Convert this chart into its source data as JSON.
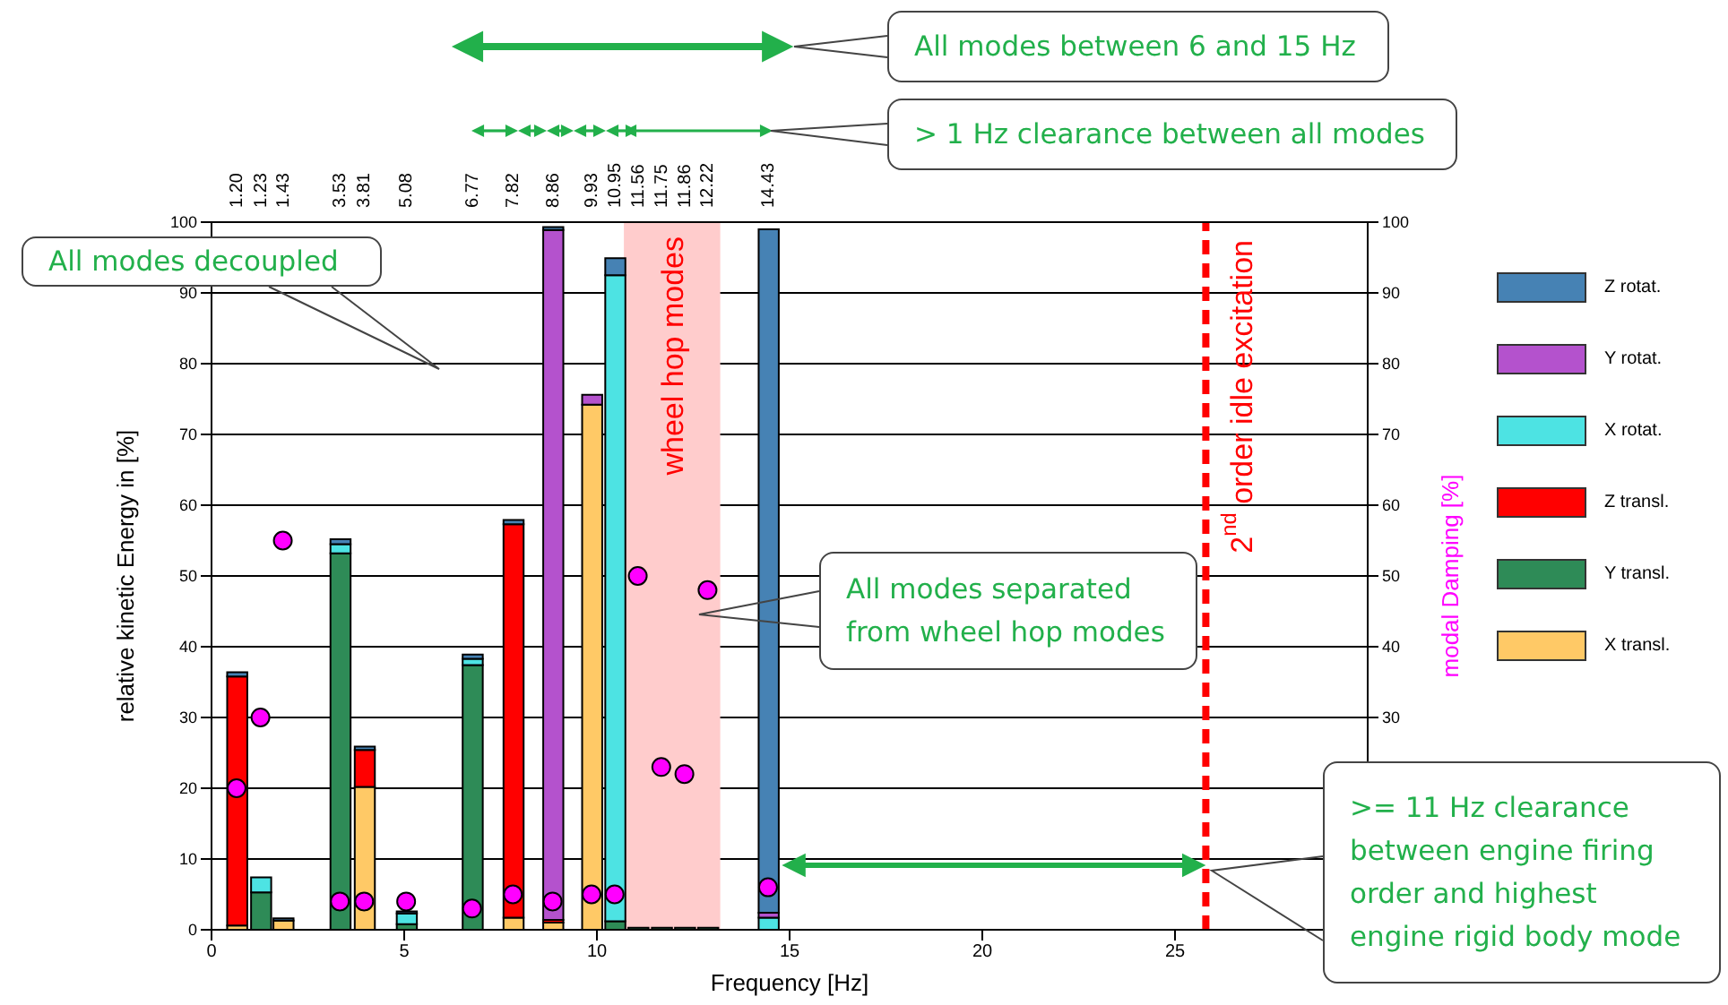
{
  "chart_data": {
    "type": "bar",
    "stacked": true,
    "xlabel": "Frequency [Hz]",
    "ylabel": "relative kinetic Energy in [%]",
    "y2label": "modal Damping [%]",
    "x": [
      0.65,
      1.27,
      1.85,
      3.33,
      3.96,
      5.05,
      6.76,
      7.82,
      8.85,
      9.86,
      10.46,
      11.06,
      11.67,
      12.27,
      12.87,
      14.44
    ],
    "series": [
      {
        "name": "X transl.",
        "color": "#ffc966",
        "values": [
          0.6,
          null,
          1.3,
          null,
          20.2,
          null,
          null,
          1.7,
          1.0,
          74.2,
          null,
          null,
          null,
          null,
          null,
          null
        ]
      },
      {
        "name": "Y transl.",
        "color": "#2e8b57",
        "values": [
          null,
          5.3,
          null,
          53.2,
          null,
          0.8,
          37.4,
          null,
          null,
          null,
          1.2,
          0.3,
          0.3,
          0.3,
          0.3,
          null
        ]
      },
      {
        "name": "Z transl.",
        "color": "#ff0000",
        "values": [
          35.2,
          null,
          null,
          null,
          5.2,
          null,
          null,
          55.6,
          0.4,
          null,
          null,
          null,
          null,
          null,
          null,
          null
        ]
      },
      {
        "name": "X rotat.",
        "color": "#4de3e3",
        "values": [
          null,
          2.1,
          null,
          1.3,
          null,
          1.5,
          0.9,
          null,
          null,
          null,
          91.3,
          null,
          null,
          null,
          null,
          1.7
        ]
      },
      {
        "name": "Y rotat.",
        "color": "#b452cd",
        "values": [
          null,
          null,
          null,
          null,
          null,
          null,
          null,
          null,
          97.5,
          1.4,
          null,
          null,
          null,
          null,
          null,
          0.7
        ]
      },
      {
        "name": "Z rotat.",
        "color": "#4682b4",
        "values": [
          0.6,
          null,
          0.3,
          0.7,
          0.5,
          0.3,
          0.6,
          0.6,
          0.4,
          null,
          2.4,
          null,
          null,
          null,
          null,
          96.6
        ]
      },
      {
        "type": "scatter",
        "axis": "y2",
        "color": "#ff00ff",
        "marker": "circle",
        "values": [
          20,
          30,
          55,
          4,
          4,
          4,
          3,
          5,
          4,
          5,
          5,
          50,
          23,
          22,
          48,
          6
        ]
      }
    ],
    "xlim": [
      0,
      30
    ],
    "xticks": [
      0,
      5,
      10,
      15,
      20,
      25
    ],
    "ylim": [
      0,
      100
    ],
    "yticks": [
      0,
      10,
      20,
      30,
      40,
      50,
      60,
      70,
      80,
      90,
      100
    ],
    "y2lim": [
      0,
      100
    ],
    "y2ticks": [
      30,
      40,
      50,
      60,
      70,
      80,
      90,
      100
    ],
    "grid": "y",
    "legend": "right",
    "ref_lines": [
      {
        "axis": "x",
        "value": 25.8,
        "label": "2$^{nd}$ order idle excitation",
        "color": "#ff0000",
        "line_style": "dashed"
      }
    ],
    "bands": [
      {
        "axis": "x",
        "from": 10.7,
        "to": 13.2,
        "label": "wheel hop modes",
        "color": "#ffcccc"
      }
    ],
    "annotations": [
      "All modes between 6 and 15 Hz",
      "> 1 Hz clearance between all modes",
      "All modes decoupled",
      "All modes separated from wheel hop modes",
      ">= 11 Hz clearance between engine firing order and highest engine rigid body mode",
      "1.20",
      "1.23",
      "1.43",
      "3.53",
      "3.81",
      "5.08",
      "6.77",
      "7.82",
      "8.86",
      "9.93",
      "10.95",
      "11.56",
      "11.75",
      "11.86",
      "12.22",
      "14.43"
    ]
  }
}
